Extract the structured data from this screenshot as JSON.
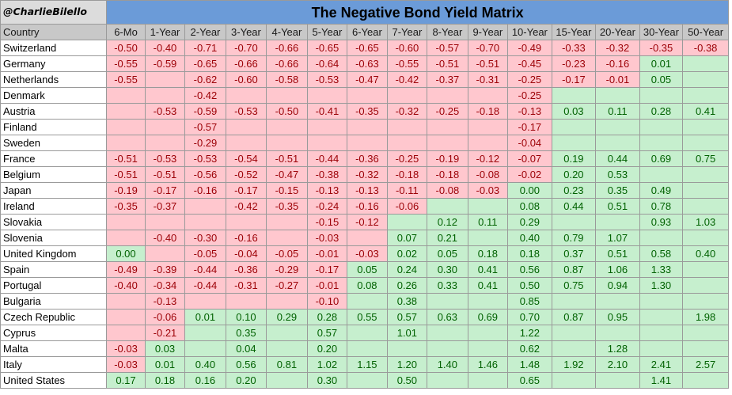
{
  "handle": "@CharlieBilello",
  "title": "The Negative Bond Yield Matrix",
  "colors": {
    "title_bg": "#6b9bd8",
    "negative_bg": "#ffc7ce",
    "negative_text": "#9c0006",
    "positive_bg": "#c6efce",
    "positive_text": "#006100",
    "header_bg": "#c8c8c8"
  },
  "header": [
    "Country",
    "6-Mo",
    "1-Year",
    "2-Year",
    "3-Year",
    "4-Year",
    "5-Year",
    "6-Year",
    "7-Year",
    "8-Year",
    "9-Year",
    "10-Year",
    "15-Year",
    "20-Year",
    "30-Year",
    "50-Year"
  ],
  "rows": [
    {
      "country": "Switzerland",
      "values": [
        "-0.50",
        "-0.40",
        "-0.71",
        "-0.70",
        "-0.66",
        "-0.65",
        "-0.65",
        "-0.60",
        "-0.57",
        "-0.70",
        "-0.49",
        "-0.33",
        "-0.32",
        "-0.35",
        "-0.38"
      ]
    },
    {
      "country": "Germany",
      "values": [
        "-0.55",
        "-0.59",
        "-0.65",
        "-0.66",
        "-0.66",
        "-0.64",
        "-0.63",
        "-0.55",
        "-0.51",
        "-0.51",
        "-0.45",
        "-0.23",
        "-0.16",
        "0.01",
        ""
      ]
    },
    {
      "country": "Netherlands",
      "values": [
        "-0.55",
        "",
        "-0.62",
        "-0.60",
        "-0.58",
        "-0.53",
        "-0.47",
        "-0.42",
        "-0.37",
        "-0.31",
        "-0.25",
        "-0.17",
        "-0.01",
        "0.05",
        ""
      ]
    },
    {
      "country": "Denmark",
      "values": [
        "",
        "",
        "-0.42",
        "",
        "",
        "",
        "",
        "",
        "",
        "",
        "-0.25",
        "",
        "",
        "",
        ""
      ]
    },
    {
      "country": "Austria",
      "values": [
        "",
        "-0.53",
        "-0.59",
        "-0.53",
        "-0.50",
        "-0.41",
        "-0.35",
        "-0.32",
        "-0.25",
        "-0.18",
        "-0.13",
        "0.03",
        "0.11",
        "0.28",
        "0.41"
      ]
    },
    {
      "country": "Finland",
      "values": [
        "",
        "",
        "-0.57",
        "",
        "",
        "",
        "",
        "",
        "",
        "",
        "-0.17",
        "",
        "",
        "",
        ""
      ]
    },
    {
      "country": "Sweden",
      "values": [
        "",
        "",
        "-0.29",
        "",
        "",
        "",
        "",
        "",
        "",
        "",
        "-0.04",
        "",
        "",
        "",
        ""
      ]
    },
    {
      "country": "France",
      "values": [
        "-0.51",
        "-0.53",
        "-0.53",
        "-0.54",
        "-0.51",
        "-0.44",
        "-0.36",
        "-0.25",
        "-0.19",
        "-0.12",
        "-0.07",
        "0.19",
        "0.44",
        "0.69",
        "0.75"
      ]
    },
    {
      "country": "Belgium",
      "values": [
        "-0.51",
        "-0.51",
        "-0.56",
        "-0.52",
        "-0.47",
        "-0.38",
        "-0.32",
        "-0.18",
        "-0.18",
        "-0.08",
        "-0.02",
        "0.20",
        "0.53",
        "",
        ""
      ]
    },
    {
      "country": "Japan",
      "values": [
        "-0.19",
        "-0.17",
        "-0.16",
        "-0.17",
        "-0.15",
        "-0.13",
        "-0.13",
        "-0.11",
        "-0.08",
        "-0.03",
        "0.00",
        "0.23",
        "0.35",
        "0.49",
        ""
      ]
    },
    {
      "country": "Ireland",
      "values": [
        "-0.35",
        "-0.37",
        "",
        "-0.42",
        "-0.35",
        "-0.24",
        "-0.16",
        "-0.06",
        "",
        "",
        "0.08",
        "0.44",
        "0.51",
        "0.78",
        ""
      ]
    },
    {
      "country": "Slovakia",
      "values": [
        "",
        "",
        "",
        "",
        "",
        "-0.15",
        "-0.12",
        "",
        "0.12",
        "0.11",
        "0.29",
        "",
        "",
        "0.93",
        "1.03"
      ]
    },
    {
      "country": "Slovenia",
      "values": [
        "",
        "-0.40",
        "-0.30",
        "-0.16",
        "",
        "-0.03",
        "",
        "0.07",
        "0.21",
        "",
        "0.40",
        "0.79",
        "1.07",
        "",
        ""
      ]
    },
    {
      "country": "United Kingdom",
      "values": [
        "0.00",
        "",
        "-0.05",
        "-0.04",
        "-0.05",
        "-0.01",
        "-0.03",
        "0.02",
        "0.05",
        "0.18",
        "0.18",
        "0.37",
        "0.51",
        "0.58",
        "0.40"
      ]
    },
    {
      "country": "Spain",
      "values": [
        "-0.49",
        "-0.39",
        "-0.44",
        "-0.36",
        "-0.29",
        "-0.17",
        "0.05",
        "0.24",
        "0.30",
        "0.41",
        "0.56",
        "0.87",
        "1.06",
        "1.33",
        ""
      ]
    },
    {
      "country": "Portugal",
      "values": [
        "-0.40",
        "-0.34",
        "-0.44",
        "-0.31",
        "-0.27",
        "-0.01",
        "0.08",
        "0.26",
        "0.33",
        "0.41",
        "0.50",
        "0.75",
        "0.94",
        "1.30",
        ""
      ]
    },
    {
      "country": "Bulgaria",
      "values": [
        "",
        "-0.13",
        "",
        "",
        "",
        "-0.10",
        "",
        "0.38",
        "",
        "",
        "0.85",
        "",
        "",
        "",
        ""
      ]
    },
    {
      "country": "Czech Republic",
      "values": [
        "",
        "-0.06",
        "0.01",
        "0.10",
        "0.29",
        "0.28",
        "0.55",
        "0.57",
        "0.63",
        "0.69",
        "0.70",
        "0.87",
        "0.95",
        "",
        "1.98"
      ]
    },
    {
      "country": "Cyprus",
      "values": [
        "",
        "-0.21",
        "",
        "0.35",
        "",
        "0.57",
        "",
        "1.01",
        "",
        "",
        "1.22",
        "",
        "",
        "",
        ""
      ]
    },
    {
      "country": "Malta",
      "values": [
        "-0.03",
        "0.03",
        "",
        "0.04",
        "",
        "0.20",
        "",
        "",
        "",
        "",
        "0.62",
        "",
        "1.28",
        "",
        ""
      ]
    },
    {
      "country": "Italy",
      "values": [
        "-0.03",
        "0.01",
        "0.40",
        "0.56",
        "0.81",
        "1.02",
        "1.15",
        "1.20",
        "1.40",
        "1.46",
        "1.48",
        "1.92",
        "2.10",
        "2.41",
        "2.57"
      ]
    },
    {
      "country": "United States",
      "values": [
        "0.17",
        "0.18",
        "0.16",
        "0.20",
        "",
        "0.30",
        "",
        "0.50",
        "",
        "",
        "0.65",
        "",
        "",
        "1.41",
        ""
      ]
    }
  ],
  "cell_colors": [
    "nnnnnnnnnnnnnnn",
    "nnnnnnnnnnnnnpp",
    "nnnnnnnnnnnnnpp",
    "nnnnnnnnnnnpppp",
    "nnnnnnnnnnnpppp",
    "nnnnnnnnnnnpppp",
    "nnnnnnnnnnnpppp",
    "nnnnnnnnnnnpppp",
    "nnnnnnnnnnnpppp",
    "nnnnnnnnnnppppp",
    "nnnnnnnnppppppp",
    "nnnnnnnpppppppp",
    "nnnnnnnpppppppp",
    "pnnnnnnpppppppp",
    "nnnnnnppppppppp",
    "nnnnnnppppppppp",
    "nnnnnnppppppppp",
    "nnppppppppppppp",
    "nnppppppppppppp",
    "npppppppppppppp",
    "npppppppppppppp",
    "ppppppppppppppp"
  ]
}
